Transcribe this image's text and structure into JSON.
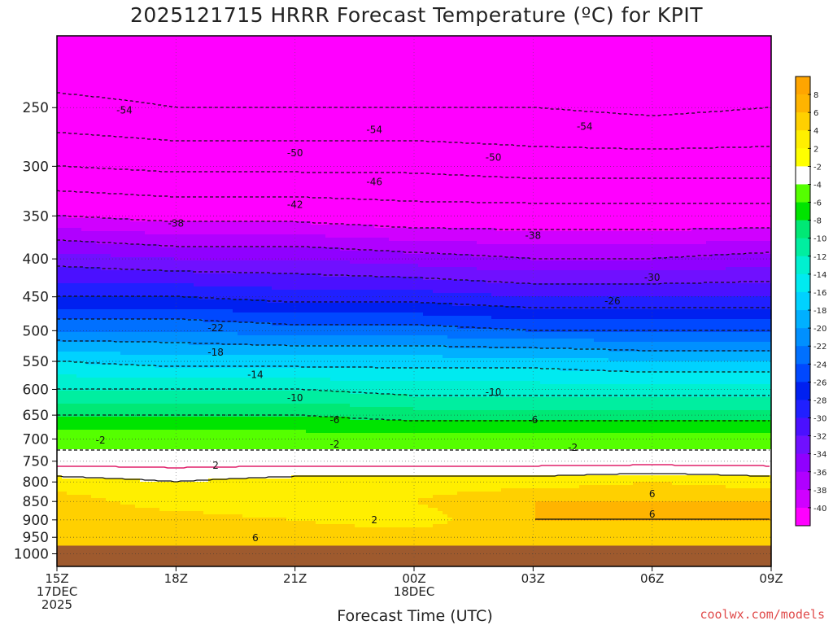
{
  "chart_data": {
    "type": "heatmap",
    "title": "2025121715 HRRR Forecast Temperature (ºC) for KPIT",
    "xlabel": "Forecast Time (UTC)",
    "ylabel": "",
    "credit": "coolwx.com/models",
    "x_ticks": [
      {
        "hour": 0,
        "lines": [
          "15Z",
          "17DEC",
          "2025"
        ]
      },
      {
        "hour": 3,
        "lines": [
          "18Z"
        ]
      },
      {
        "hour": 6,
        "lines": [
          "21Z"
        ]
      },
      {
        "hour": 9,
        "lines": [
          "00Z",
          "18DEC"
        ]
      },
      {
        "hour": 12,
        "lines": [
          "03Z"
        ]
      },
      {
        "hour": 15,
        "lines": [
          "06Z"
        ]
      },
      {
        "hour": 18,
        "lines": [
          "09Z"
        ]
      }
    ],
    "xlim": [
      0,
      18
    ],
    "y_ticks": [
      250,
      300,
      350,
      400,
      450,
      500,
      550,
      600,
      650,
      700,
      750,
      800,
      850,
      900,
      950,
      1000
    ],
    "ylim": [
      1040,
      200
    ],
    "y_scale": "log-pressure (hPa)",
    "ground_level_hpa": 975,
    "colorbar": {
      "labels": [
        "8",
        "6",
        "4",
        "2",
        "-2",
        "-4",
        "-6",
        "-8",
        "-10",
        "-12",
        "-14",
        "-16",
        "-18",
        "-20",
        "-22",
        "-24",
        "-26",
        "-28",
        "-30",
        "-32",
        "-34",
        "-36",
        "-38",
        "-40"
      ],
      "colors": [
        "#ffa500",
        "#ffb400",
        "#ffd000",
        "#ffef00",
        "#ffff00",
        "#ffffff",
        "#55ff00",
        "#00e400",
        "#00e875",
        "#00eea0",
        "#00f0d0",
        "#00eaf0",
        "#00d2ff",
        "#00b0ff",
        "#0090ff",
        "#0070ff",
        "#0048ff",
        "#0020f0",
        "#2020ff",
        "#4b10ff",
        "#7010ff",
        "#9000ff",
        "#b000ff",
        "#d000ff",
        "#ff00ff"
      ]
    },
    "profiles": [
      {
        "hour": 0,
        "levels": [
          [
            975,
            4
          ],
          [
            950,
            6
          ],
          [
            900,
            5
          ],
          [
            850,
            5
          ],
          [
            800,
            3
          ],
          [
            750,
            -1
          ],
          [
            700,
            -3
          ],
          [
            650,
            -6
          ],
          [
            600,
            -10
          ],
          [
            550,
            -14
          ],
          [
            500,
            -20
          ],
          [
            450,
            -26
          ],
          [
            400,
            -31
          ],
          [
            350,
            -38
          ],
          [
            300,
            -46
          ],
          [
            250,
            -53
          ],
          [
            200,
            -58
          ]
        ]
      },
      {
        "hour": 3,
        "levels": [
          [
            975,
            4
          ],
          [
            950,
            6
          ],
          [
            900,
            5
          ],
          [
            850,
            3
          ],
          [
            800,
            2
          ],
          [
            750,
            -1
          ],
          [
            700,
            -3
          ],
          [
            650,
            -6
          ],
          [
            600,
            -10
          ],
          [
            550,
            -15
          ],
          [
            500,
            -20
          ],
          [
            450,
            -26
          ],
          [
            400,
            -32
          ],
          [
            350,
            -39
          ],
          [
            300,
            -47
          ],
          [
            250,
            -54
          ],
          [
            200,
            -58
          ]
        ]
      },
      {
        "hour": 6,
        "levels": [
          [
            975,
            4
          ],
          [
            950,
            5
          ],
          [
            900,
            4
          ],
          [
            850,
            2
          ],
          [
            800,
            3
          ],
          [
            750,
            -1
          ],
          [
            700,
            -3
          ],
          [
            650,
            -6
          ],
          [
            600,
            -10
          ],
          [
            550,
            -15
          ],
          [
            500,
            -21
          ],
          [
            450,
            -27
          ],
          [
            400,
            -32
          ],
          [
            350,
            -39
          ],
          [
            300,
            -47
          ],
          [
            250,
            -54
          ],
          [
            200,
            -59
          ]
        ]
      },
      {
        "hour": 9,
        "levels": [
          [
            975,
            4
          ],
          [
            950,
            5
          ],
          [
            900,
            3
          ],
          [
            850,
            4
          ],
          [
            800,
            3
          ],
          [
            750,
            -1
          ],
          [
            700,
            -3
          ],
          [
            650,
            -7
          ],
          [
            600,
            -11
          ],
          [
            550,
            -15
          ],
          [
            500,
            -21
          ],
          [
            450,
            -27
          ],
          [
            400,
            -33
          ],
          [
            350,
            -40
          ],
          [
            300,
            -47
          ],
          [
            250,
            -54
          ],
          [
            200,
            -59
          ]
        ]
      },
      {
        "hour": 12,
        "levels": [
          [
            975,
            5
          ],
          [
            950,
            5
          ],
          [
            900,
            6
          ],
          [
            850,
            6
          ],
          [
            800,
            3
          ],
          [
            750,
            -1
          ],
          [
            700,
            -3
          ],
          [
            650,
            -7
          ],
          [
            600,
            -11
          ],
          [
            550,
            -15
          ],
          [
            500,
            -22
          ],
          [
            450,
            -28
          ],
          [
            400,
            -34
          ],
          [
            350,
            -40
          ],
          [
            300,
            -48
          ],
          [
            250,
            -54
          ],
          [
            200,
            -59
          ]
        ]
      },
      {
        "hour": 15,
        "levels": [
          [
            975,
            5
          ],
          [
            950,
            6
          ],
          [
            900,
            6
          ],
          [
            850,
            6
          ],
          [
            800,
            4
          ],
          [
            750,
            -1
          ],
          [
            700,
            -3
          ],
          [
            650,
            -7
          ],
          [
            600,
            -11
          ],
          [
            550,
            -16
          ],
          [
            500,
            -22
          ],
          [
            450,
            -28
          ],
          [
            400,
            -34
          ],
          [
            350,
            -40
          ],
          [
            300,
            -48
          ],
          [
            250,
            -55
          ],
          [
            200,
            -59
          ]
        ]
      },
      {
        "hour": 18,
        "levels": [
          [
            975,
            5
          ],
          [
            950,
            5
          ],
          [
            900,
            6
          ],
          [
            850,
            6
          ],
          [
            800,
            3
          ],
          [
            750,
            -1
          ],
          [
            700,
            -3
          ],
          [
            650,
            -7
          ],
          [
            600,
            -11
          ],
          [
            550,
            -16
          ],
          [
            500,
            -22
          ],
          [
            450,
            -28
          ],
          [
            400,
            -33
          ],
          [
            350,
            -40
          ],
          [
            300,
            -48
          ],
          [
            250,
            -54
          ],
          [
            200,
            -59
          ]
        ]
      }
    ],
    "contour_labels": [
      {
        "text": "-54",
        "hour": 1.7,
        "p": 252
      },
      {
        "text": "-54",
        "hour": 8.0,
        "p": 268
      },
      {
        "text": "-54",
        "hour": 13.3,
        "p": 265
      },
      {
        "text": "-50",
        "hour": 6.0,
        "p": 288
      },
      {
        "text": "-50",
        "hour": 11.0,
        "p": 292
      },
      {
        "text": "-46",
        "hour": 8.0,
        "p": 315
      },
      {
        "text": "-42",
        "hour": 6.0,
        "p": 338
      },
      {
        "text": "-38",
        "hour": 3.0,
        "p": 358
      },
      {
        "text": "-38",
        "hour": 12.0,
        "p": 372
      },
      {
        "text": "-30",
        "hour": 15.0,
        "p": 424
      },
      {
        "text": "-26",
        "hour": 14.0,
        "p": 456
      },
      {
        "text": "-22",
        "hour": 4.0,
        "p": 496
      },
      {
        "text": "-18",
        "hour": 4.0,
        "p": 535
      },
      {
        "text": "-14",
        "hour": 5.0,
        "p": 573
      },
      {
        "text": "-10",
        "hour": 6.0,
        "p": 616
      },
      {
        "text": "-10",
        "hour": 11.0,
        "p": 605
      },
      {
        "text": "-6",
        "hour": 7.0,
        "p": 660
      },
      {
        "text": "-6",
        "hour": 12.0,
        "p": 660
      },
      {
        "text": "-2",
        "hour": 1.1,
        "p": 703
      },
      {
        "text": "-2",
        "hour": 7.0,
        "p": 712
      },
      {
        "text": "-2",
        "hour": 13.0,
        "p": 719
      },
      {
        "text": "2",
        "hour": 4.0,
        "p": 760
      },
      {
        "text": "2",
        "hour": 8.0,
        "p": 900
      },
      {
        "text": "6",
        "hour": 5.0,
        "p": 952
      },
      {
        "text": "6",
        "hour": 15.0,
        "p": 830
      },
      {
        "text": "6",
        "hour": 15.0,
        "p": 885
      }
    ]
  }
}
